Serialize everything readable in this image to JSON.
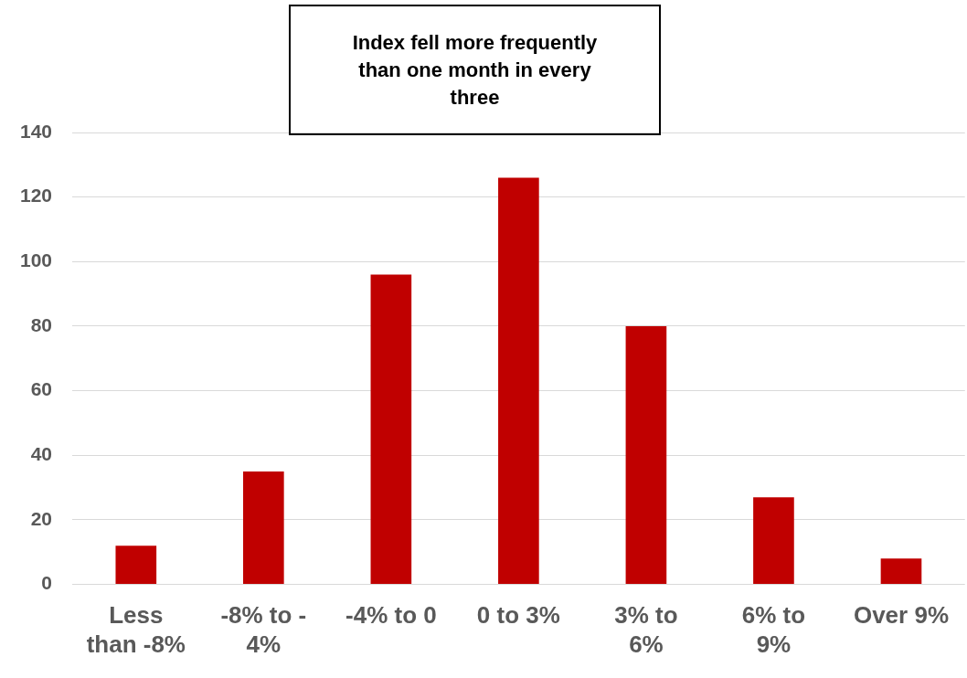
{
  "chart_data": {
    "type": "bar",
    "title": "Index fell more frequently than one month in every three",
    "categories": [
      "Less than -8%",
      "-8% to -4%",
      "-4% to 0",
      "0 to 3%",
      "3% to 6%",
      "6% to 9%",
      "Over 9%"
    ],
    "values": [
      12,
      35,
      96,
      126,
      80,
      27,
      8
    ],
    "color": "#c00000",
    "ylim": [
      0,
      140
    ],
    "yticks": [
      0,
      20,
      40,
      60,
      80,
      100,
      120,
      140
    ],
    "grid": "y",
    "legend": false
  }
}
